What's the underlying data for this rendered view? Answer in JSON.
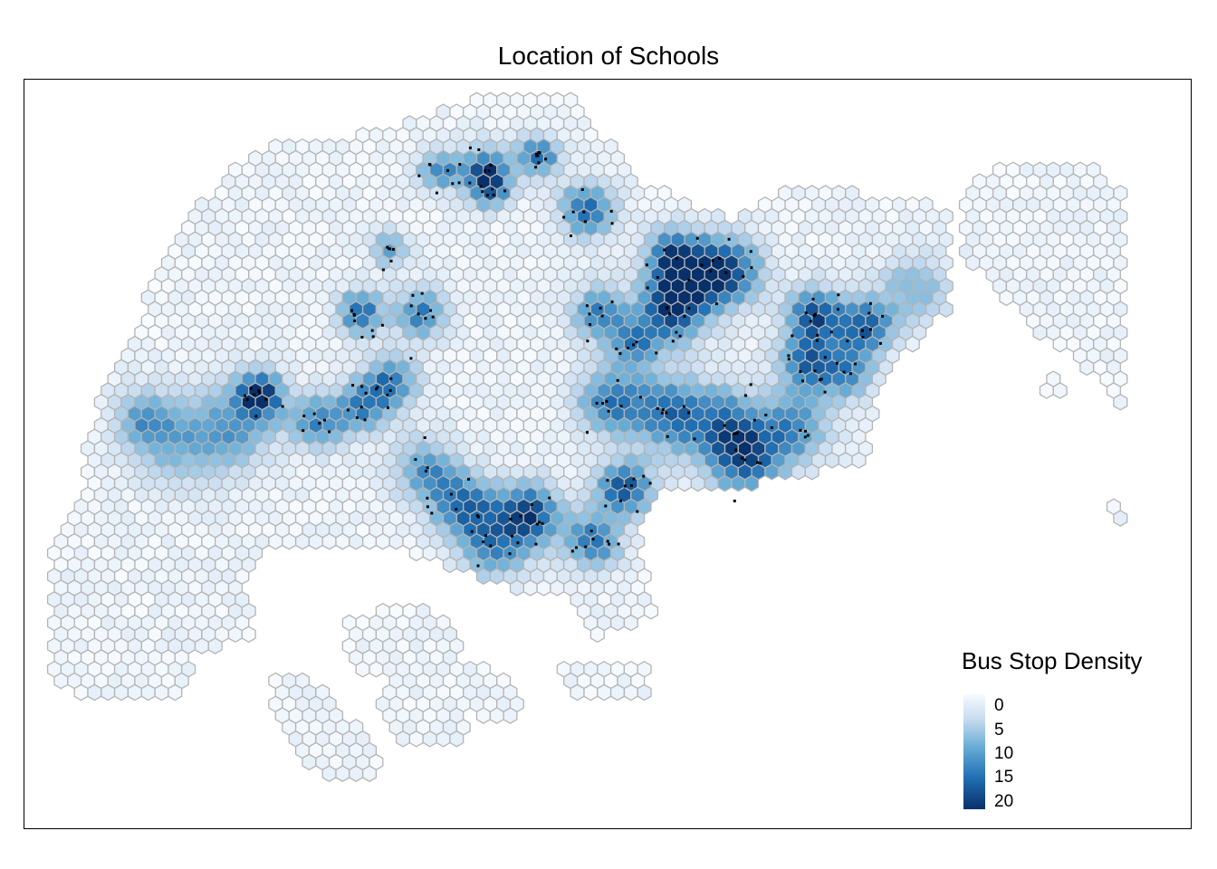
{
  "map": {
    "title": "Location of Schools"
  },
  "legend": {
    "title": "Bus Stop Density",
    "labels": [
      "0",
      "5",
      "10",
      "15",
      "20"
    ],
    "range": [
      0,
      20
    ],
    "colors": [
      "#f7fbff",
      "#c6dbef",
      "#6baed6",
      "#2171b5",
      "#08306b"
    ]
  },
  "style": {
    "hex_stroke": "#b4b4b4",
    "school_marker": "#000000",
    "frame": "#000000"
  }
}
